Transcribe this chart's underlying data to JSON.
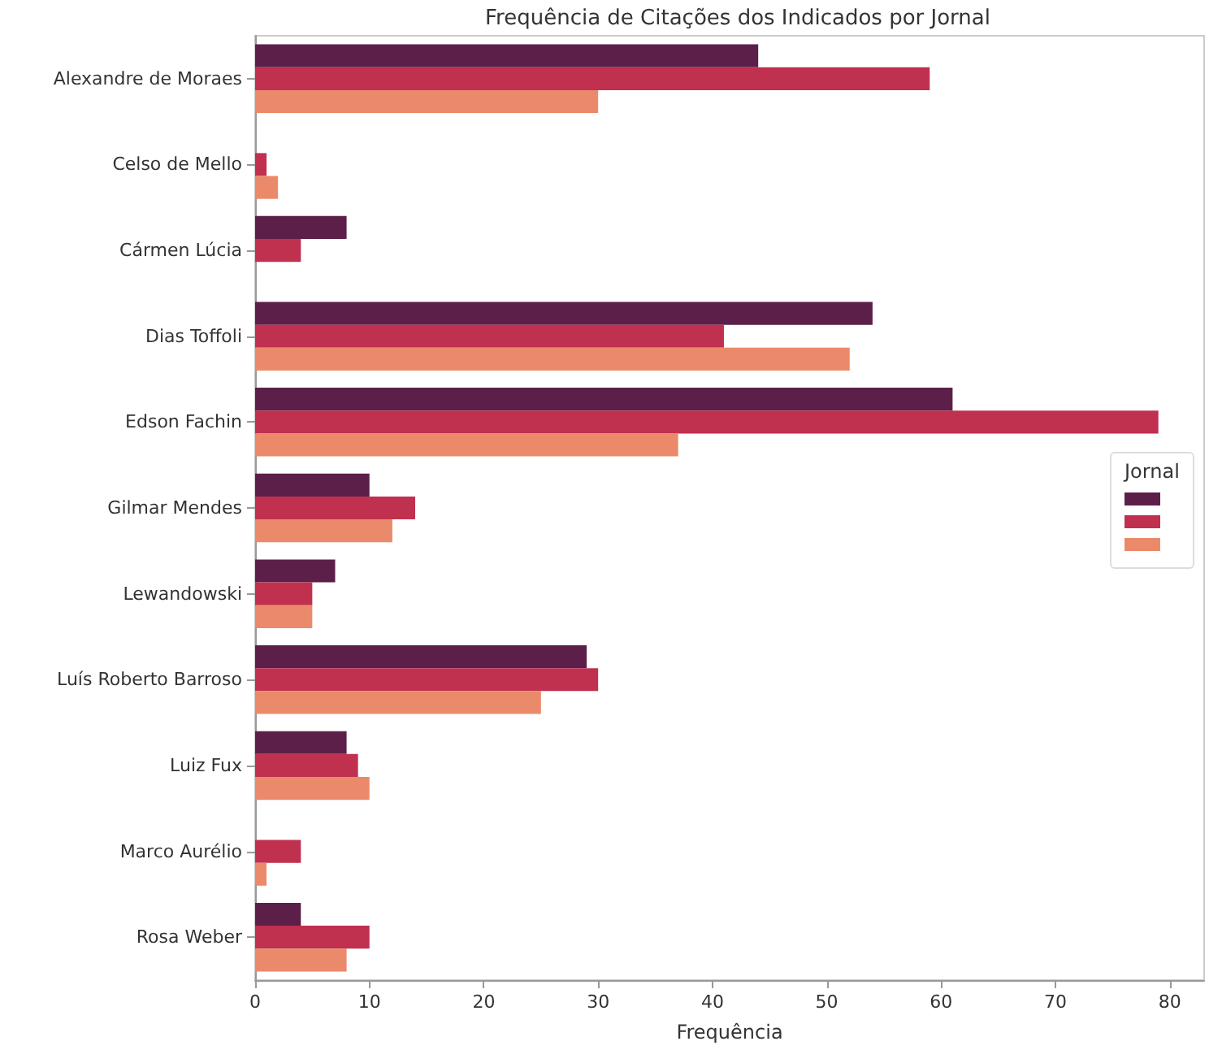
{
  "chart_data": {
    "type": "bar",
    "orientation": "horizontal",
    "title": "Frequência de Citações dos Indicados por Jornal",
    "xlabel": "Frequência",
    "legend_title": "Jornal",
    "categories": [
      "Alexandre de Moraes",
      "Celso de Mello",
      "Cármen Lúcia",
      "Dias Toffoli",
      "Edson Fachin",
      "Gilmar Mendes",
      "Lewandowski",
      "Luís Roberto Barroso",
      "Luiz Fux",
      "Marco Aurélio",
      "Rosa Weber"
    ],
    "series": [
      {
        "color": "#5c1f4a",
        "values": [
          44,
          0,
          8,
          54,
          61,
          10,
          7,
          29,
          8,
          0,
          4
        ]
      },
      {
        "color": "#c0304f",
        "values": [
          59,
          1,
          4,
          41,
          79,
          14,
          5,
          30,
          9,
          4,
          10
        ]
      },
      {
        "color": "#eb8a6a",
        "values": [
          30,
          2,
          0,
          52,
          37,
          12,
          5,
          25,
          10,
          1,
          8
        ]
      }
    ],
    "xlim": [
      0,
      83
    ],
    "xticks": [
      0,
      10,
      20,
      30,
      40,
      50,
      60,
      70,
      80
    ],
    "grid": false
  }
}
